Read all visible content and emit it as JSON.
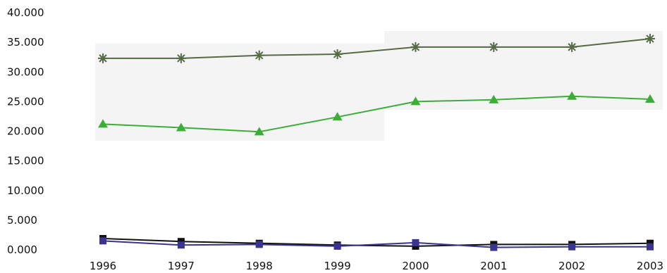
{
  "chart_data": {
    "type": "line",
    "title": "",
    "xlabel": "",
    "ylabel": "",
    "x": [
      "1996",
      "1997",
      "1998",
      "1999",
      "2000",
      "2001",
      "2002",
      "2003"
    ],
    "ylim": [
      0,
      40000
    ],
    "y_ticks": [
      {
        "value": 0,
        "label": "0.000"
      },
      {
        "value": 5000,
        "label": "5.000"
      },
      {
        "value": 10000,
        "label": "10.000"
      },
      {
        "value": 15000,
        "label": "15.000"
      },
      {
        "value": 20000,
        "label": "20.000"
      },
      {
        "value": 25000,
        "label": "25.000"
      },
      {
        "value": 30000,
        "label": "30.000"
      },
      {
        "value": 35000,
        "label": "35.000"
      },
      {
        "value": 40000,
        "label": "40.000"
      }
    ],
    "grid": false,
    "legend": "none",
    "series": [
      {
        "color": "#556b44",
        "marker": "star",
        "values": [
          32300,
          32300,
          32800,
          33000,
          34200,
          34200,
          34200,
          35600
        ]
      },
      {
        "color": "#3cad38",
        "marker": "triangle",
        "values": [
          21200,
          20600,
          19900,
          22400,
          25000,
          25300,
          25900,
          25400
        ]
      },
      {
        "color": "#111111",
        "marker": "square",
        "values": [
          1900,
          1400,
          1100,
          800,
          600,
          900,
          900,
          1100
        ]
      },
      {
        "color": "#3a3490",
        "marker": "square",
        "values": [
          1500,
          800,
          900,
          600,
          1200,
          400,
          500,
          500
        ]
      }
    ]
  }
}
